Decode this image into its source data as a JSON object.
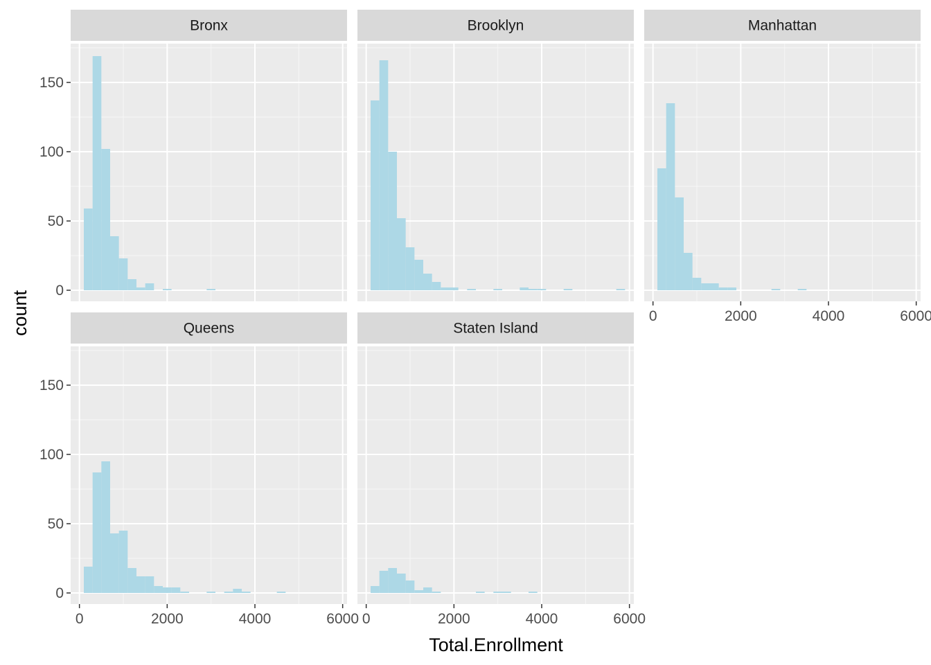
{
  "chart_data": {
    "type": "bar",
    "chart_kind": "histogram (faceted)",
    "xlabel": "Total.Enrollment",
    "ylabel": "count",
    "xlim": [
      -200,
      6100
    ],
    "ylim": [
      -8,
      178
    ],
    "x_ticks": [
      0,
      2000,
      4000,
      6000
    ],
    "y_ticks": [
      0,
      50,
      100,
      150
    ],
    "grid": true,
    "bin_width": 200,
    "bar_color": "#add8e6",
    "panel_background": "#ebebeb",
    "strip_background": "#d9d9d9",
    "legend": "none",
    "facets": [
      {
        "name": "Bronx",
        "bins": [
          {
            "x": 200,
            "count": 59
          },
          {
            "x": 400,
            "count": 169
          },
          {
            "x": 600,
            "count": 102
          },
          {
            "x": 800,
            "count": 39
          },
          {
            "x": 1000,
            "count": 23
          },
          {
            "x": 1200,
            "count": 8
          },
          {
            "x": 1400,
            "count": 2
          },
          {
            "x": 1600,
            "count": 5
          },
          {
            "x": 2000,
            "count": 1
          },
          {
            "x": 3000,
            "count": 1
          }
        ]
      },
      {
        "name": "Brooklyn",
        "bins": [
          {
            "x": 200,
            "count": 137
          },
          {
            "x": 400,
            "count": 166
          },
          {
            "x": 600,
            "count": 100
          },
          {
            "x": 800,
            "count": 52
          },
          {
            "x": 1000,
            "count": 31
          },
          {
            "x": 1200,
            "count": 22
          },
          {
            "x": 1400,
            "count": 12
          },
          {
            "x": 1600,
            "count": 6
          },
          {
            "x": 1800,
            "count": 2
          },
          {
            "x": 2000,
            "count": 2
          },
          {
            "x": 2400,
            "count": 1
          },
          {
            "x": 3000,
            "count": 1
          },
          {
            "x": 3600,
            "count": 2
          },
          {
            "x": 3800,
            "count": 1
          },
          {
            "x": 4000,
            "count": 1
          },
          {
            "x": 4600,
            "count": 1
          },
          {
            "x": 5800,
            "count": 1
          }
        ]
      },
      {
        "name": "Manhattan",
        "bins": [
          {
            "x": 200,
            "count": 88
          },
          {
            "x": 400,
            "count": 135
          },
          {
            "x": 600,
            "count": 67
          },
          {
            "x": 800,
            "count": 27
          },
          {
            "x": 1000,
            "count": 9
          },
          {
            "x": 1200,
            "count": 5
          },
          {
            "x": 1400,
            "count": 5
          },
          {
            "x": 1600,
            "count": 2
          },
          {
            "x": 1800,
            "count": 2
          },
          {
            "x": 2800,
            "count": 1
          },
          {
            "x": 3400,
            "count": 1
          }
        ]
      },
      {
        "name": "Queens",
        "bins": [
          {
            "x": 200,
            "count": 19
          },
          {
            "x": 400,
            "count": 87
          },
          {
            "x": 600,
            "count": 95
          },
          {
            "x": 800,
            "count": 43
          },
          {
            "x": 1000,
            "count": 45
          },
          {
            "x": 1200,
            "count": 18
          },
          {
            "x": 1400,
            "count": 12
          },
          {
            "x": 1600,
            "count": 12
          },
          {
            "x": 1800,
            "count": 5
          },
          {
            "x": 2000,
            "count": 4
          },
          {
            "x": 2200,
            "count": 4
          },
          {
            "x": 2400,
            "count": 1
          },
          {
            "x": 3000,
            "count": 1
          },
          {
            "x": 3400,
            "count": 1
          },
          {
            "x": 3600,
            "count": 3
          },
          {
            "x": 3800,
            "count": 1
          },
          {
            "x": 4600,
            "count": 1
          }
        ]
      },
      {
        "name": "Staten Island",
        "bins": [
          {
            "x": 200,
            "count": 5
          },
          {
            "x": 400,
            "count": 16
          },
          {
            "x": 600,
            "count": 18
          },
          {
            "x": 800,
            "count": 14
          },
          {
            "x": 1000,
            "count": 9
          },
          {
            "x": 1200,
            "count": 2
          },
          {
            "x": 1400,
            "count": 4
          },
          {
            "x": 1600,
            "count": 1
          },
          {
            "x": 2600,
            "count": 1
          },
          {
            "x": 3000,
            "count": 1
          },
          {
            "x": 3200,
            "count": 1
          },
          {
            "x": 3800,
            "count": 1
          }
        ]
      }
    ]
  }
}
